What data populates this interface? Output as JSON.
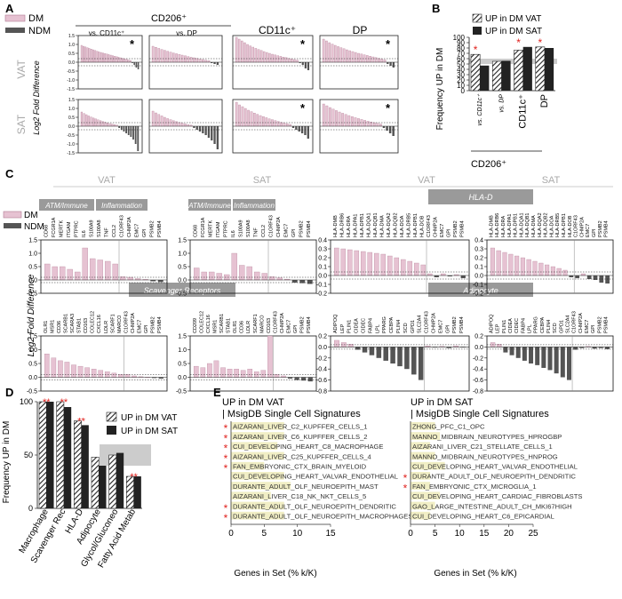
{
  "panel_labels": [
    "A",
    "B",
    "C",
    "D",
    "E"
  ],
  "colors": {
    "dm": "#e6c2d2",
    "dm_stroke": "#b07a92",
    "ndm": "#555555",
    "hatch": "#222222",
    "gray_band": "#cccccc",
    "header_box": "#9a9a9a",
    "star": "#e0201c",
    "highlight": "#f1eec5"
  },
  "legend": {
    "dm": "DM",
    "ndm": "NDM"
  },
  "panel_a": {
    "group_header": "CD206⁺",
    "col_titles": [
      "vs. CD11c⁺",
      "vs. DP",
      "CD11c⁺",
      "DP"
    ],
    "row_labels": [
      "VAT",
      "SAT"
    ],
    "ylabel": "Log2 Fold Difference",
    "star": "*"
  },
  "panel_c": {
    "ylabel": "Log2 Fold Difference",
    "col_titles": [
      "VAT",
      "SAT",
      "VAT",
      "SAT"
    ],
    "boxes": {
      "atm": "ATM/Immune",
      "inflammation": "Inflammation",
      "hlad": "HLA-D",
      "scavenger": "Scavenger Receptors",
      "adipocyte": "Adipocyte"
    }
  },
  "panel_e": {
    "left_title": "UP in DM VAT",
    "left_subtitle": "| MsigDB Single Cell Signatures",
    "right_title": "UP in DM SAT",
    "right_subtitle": "| MsigDB Single Cell Signatures",
    "left_items": [
      {
        "label": "AIZARANI_LIVER_C2_KUPFFER_CELLS_1",
        "star": true
      },
      {
        "label": "AIZARANI_LIVER_C6_KUPFFER_CELLS_2",
        "star": true
      },
      {
        "label": "CUI_DEVELOPING_HEART_C8_MACROPHAGE",
        "star": true
      },
      {
        "label": "AIZARANI_LIVER_C25_KUPFFER_CELLS_4",
        "star": true
      },
      {
        "label": "FAN_EMBRYONIC_CTX_BRAIN_MYELOID",
        "star": true
      },
      {
        "label": "CUI_DEVELOPING_HEART_VALVAR_ENDOTHELIAL",
        "star": false
      },
      {
        "label": "DURANTE_ADULT_OLF_NEUROEPITH_MAST",
        "star": false
      },
      {
        "label": "AIZARANI_LIVER_C18_NK_NKT_CELLS_5",
        "star": false
      },
      {
        "label": "DURANTE_ADULT_OLF_NEUROEPITH_DENDRITIC",
        "star": true
      },
      {
        "label": "DURANTE_ADULT_OLF_NEUROEPITH_MACROPHAGES",
        "star": true
      }
    ],
    "right_items": [
      {
        "label": "ZHONG_PFC_C1_OPC",
        "star": false
      },
      {
        "label": "MANNO_MIDBRAIN_NEUROTYPES_HPROGBP",
        "star": false
      },
      {
        "label": "AIZARANI_LIVER_C21_STELLATE_CELLS_1",
        "star": false
      },
      {
        "label": "MANNO_MIDBRAIN_NEUROTYPES_HNPROG",
        "star": false
      },
      {
        "label": "CUI_DEVELOPING_HEART_VALVAR_ENDOTHELIAL",
        "star": false
      },
      {
        "label": "DURANTE_ADULT_OLF_NEUROEPITH_DENDRITIC",
        "star": true
      },
      {
        "label": "FAN_EMBRYONIC_CTX_MICROGLIA_1",
        "star": true
      },
      {
        "label": "CUI_DEVELOPING_HEART_CARDIAC_FIBROBLASTS",
        "star": false
      },
      {
        "label": "GAO_LARGE_INTESTINE_ADULT_CH_MKI67HIGH",
        "star": false
      },
      {
        "label": "CUI_DEVELOPING_HEART_C6_EPICARDIAL",
        "star": false
      }
    ]
  },
  "chart_data": [
    {
      "type": "bar",
      "id": "B",
      "ylabel": "Frequency UP in DM",
      "ylim": [
        0,
        100
      ],
      "yticks": [
        0,
        10,
        20,
        30,
        40,
        50,
        60,
        70,
        80,
        90,
        100
      ],
      "categories": [
        "vs. CD11c⁺",
        "vs. DP",
        "CD11c⁺",
        "DP"
      ],
      "group_label": "CD206⁺",
      "series": [
        {
          "name": "UP in DM VAT",
          "values": [
            68,
            55,
            76,
            82
          ]
        },
        {
          "name": "UP in DM SAT",
          "values": [
            47,
            56,
            82,
            80
          ]
        }
      ],
      "band": [
        50,
        60
      ],
      "stars": [
        true,
        false,
        true,
        true
      ]
    },
    {
      "type": "bar",
      "id": "D",
      "ylabel": "Frequency UP in DM",
      "ylim": [
        0,
        100
      ],
      "yticks": [
        0,
        50,
        100
      ],
      "categories": [
        "Macrophage",
        "Scavenger Rec",
        "HLA-D",
        "Adipocyte",
        "Glycol/Gluconeo",
        "Fatty Acid Metab"
      ],
      "series": [
        {
          "name": "UP in DM VAT",
          "values": [
            100,
            100,
            82,
            48,
            50,
            30
          ]
        },
        {
          "name": "UP in DM SAT",
          "values": [
            100,
            95,
            78,
            40,
            52,
            30
          ]
        }
      ],
      "band": [
        40,
        60
      ],
      "stars": [
        2,
        2,
        2,
        0,
        0,
        2
      ]
    },
    {
      "type": "bar",
      "id": "E-left",
      "xlabel": "Genes in Set (% k/K)",
      "xlim": [
        0,
        15
      ],
      "xticks": [
        0,
        5,
        10,
        15
      ],
      "categories": [
        "AIZARANI_LIVER_C2_KUPFFER_CELLS_1",
        "AIZARANI_LIVER_C6_KUPFFER_CELLS_2",
        "CUI_DEVELOPING_HEART_C8_MACROPHAGE",
        "AIZARANI_LIVER_C25_KUPFFER_CELLS_4",
        "FAN_EMBRYONIC_CTX_BRAIN_MYELOID",
        "CUI_DEVELOPING_HEART_VALVAR_ENDOTHELIAL",
        "DURANTE_ADULT_OLF_NEUROEPITH_MAST",
        "AIZARANI_LIVER_C18_NK_NKT_CELLS_5",
        "DURANTE_ADULT_OLF_NEUROEPITH_DENDRITIC",
        "DURANTE_ADULT_OLF_NEUROEPITH_MACROPHAGES"
      ],
      "values": [
        8,
        8,
        7,
        8,
        5,
        8,
        9,
        6,
        8,
        8
      ]
    },
    {
      "type": "bar",
      "id": "E-right",
      "xlabel": "Genes in Set (% k/K)",
      "xlim": [
        0,
        25
      ],
      "xticks": [
        0,
        5,
        10,
        15,
        20,
        25
      ],
      "categories": [
        "ZHONG_PFC_C1_OPC",
        "MANNO_MIDBRAIN_NEUROTYPES_HPROGBP",
        "AIZARANI_LIVER_C21_STELLATE_CELLS_1",
        "MANNO_MIDBRAIN_NEUROTYPES_HNPROG",
        "CUI_DEVELOPING_HEART_VALVAR_ENDOTHELIAL",
        "DURANTE_ADULT_OLF_NEUROEPITH_DENDRITIC",
        "FAN_EMBRYONIC_CTX_MICROGLIA_1",
        "CUI_DEVELOPING_HEART_CARDIAC_FIBROBLASTS",
        "GAO_LARGE_INTESTINE_ADULT_CH_MKI67HIGH",
        "CUI_DEVELOPING_HEART_C6_EPICARDIAL"
      ],
      "values": [
        5,
        6,
        4,
        5,
        7,
        4,
        4,
        6,
        5,
        4
      ]
    },
    {
      "type": "bar",
      "id": "A-VAT-vsCD11c",
      "ylim": [
        -1.5,
        1.5
      ],
      "yticks": [
        -1.5,
        -1.0,
        -0.5,
        0,
        0.5,
        1.0,
        1.5
      ],
      "values": [
        0.95,
        0.9,
        0.86,
        0.82,
        0.78,
        0.74,
        0.7,
        0.66,
        0.62,
        0.58,
        0.55,
        0.52,
        0.49,
        0.46,
        0.43,
        0.4,
        0.37,
        0.34,
        0.31,
        0.28,
        0.25,
        0.22,
        0.19,
        0.16,
        0.13,
        0.1,
        -0.05,
        -0.15,
        -0.3,
        -0.4
      ]
    },
    {
      "type": "bar",
      "id": "A-VAT-vsDP",
      "ylim": [
        -1.5,
        1.5
      ],
      "values": [
        0.9,
        0.84,
        0.78,
        0.72,
        0.67,
        0.62,
        0.57,
        0.52,
        0.48,
        0.44,
        0.4,
        0.36,
        0.32,
        0.28,
        0.25,
        0.22,
        0.18,
        0.15,
        0.12,
        0.09,
        -0.05,
        -0.1,
        -0.15
      ]
    },
    {
      "type": "bar",
      "id": "A-VAT-CD11c",
      "ylim": [
        -1.5,
        1.5
      ],
      "values": [
        1.4,
        1.3,
        1.2,
        1.1,
        1.0,
        0.92,
        0.85,
        0.78,
        0.72,
        0.66,
        0.6,
        0.55,
        0.5,
        0.45,
        0.41,
        0.37,
        0.33,
        0.29,
        0.26,
        0.22,
        0.19,
        0.15,
        0.12,
        -0.05,
        -0.15,
        -0.35,
        -0.45
      ]
    },
    {
      "type": "bar",
      "id": "A-VAT-DP",
      "ylim": [
        -1.5,
        1.5
      ],
      "values": [
        1.3,
        1.2,
        1.1,
        1.02,
        0.95,
        0.88,
        0.82,
        0.76,
        0.7,
        0.65,
        0.6,
        0.55,
        0.5,
        0.46,
        0.42,
        0.38,
        0.34,
        0.3,
        0.26,
        0.22,
        0.18,
        0.14,
        -0.1,
        -0.2,
        -0.3
      ]
    },
    {
      "type": "bar",
      "id": "A-SAT-vsCD11c",
      "ylim": [
        -1.5,
        1.5
      ],
      "values": [
        0.8,
        0.72,
        0.65,
        0.58,
        0.52,
        0.46,
        0.41,
        0.36,
        0.31,
        0.27,
        0.23,
        0.19,
        0.15,
        0.12,
        0.09,
        0.06,
        -0.1,
        -0.2,
        -0.3,
        -0.4,
        -0.5,
        -0.6,
        -0.75,
        -1.0,
        -1.4
      ]
    },
    {
      "type": "bar",
      "id": "A-SAT-vsDP",
      "ylim": [
        -1.5,
        1.5
      ],
      "values": [
        0.85,
        0.75,
        0.66,
        0.58,
        0.5,
        0.43,
        0.37,
        0.31,
        0.26,
        0.21,
        0.17,
        0.13,
        0.09,
        0.06,
        -0.1,
        -0.2,
        -0.3,
        -0.4,
        -0.5,
        -0.65,
        -0.8,
        -1.0,
        -1.3
      ]
    },
    {
      "type": "bar",
      "id": "A-SAT-CD11c",
      "ylim": [
        -1.5,
        1.5
      ],
      "values": [
        1.35,
        1.2,
        1.1,
        1.0,
        0.9,
        0.82,
        0.74,
        0.67,
        0.6,
        0.54,
        0.48,
        0.42,
        0.37,
        0.32,
        0.27,
        0.22,
        0.18,
        0.14,
        0.1,
        -0.1,
        -0.2,
        -0.3,
        -0.4,
        -0.5,
        -0.7
      ]
    },
    {
      "type": "bar",
      "id": "A-SAT-DP",
      "ylim": [
        -1.5,
        1.5
      ],
      "values": [
        1.25,
        1.15,
        1.05,
        0.96,
        0.88,
        0.8,
        0.73,
        0.66,
        0.6,
        0.54,
        0.48,
        0.43,
        0.38,
        0.33,
        0.28,
        0.24,
        0.2,
        0.16,
        0.12,
        -0.1,
        -0.25,
        -0.4,
        -0.55
      ]
    },
    {
      "type": "bar",
      "id": "C-VAT-1",
      "ylim": [
        -0.5,
        1.5
      ],
      "yticks": [
        -0.5,
        0.0,
        0.5,
        1.0,
        1.5
      ],
      "categories": [
        "CD68",
        "FCGR1A",
        "MERTK",
        "ITGAM",
        "PTPRC",
        "IL6",
        "S100A9",
        "S100A8",
        "TNF",
        "CCL2",
        "C1ORF43",
        "CHMP2A",
        "EMC7",
        "GPI",
        "PSMB2",
        "PSMB4"
      ],
      "values": [
        0.6,
        0.5,
        0.5,
        0.4,
        0.3,
        1.2,
        0.8,
        0.75,
        0.7,
        0.6,
        0.12,
        0.1,
        0.05,
        0.02,
        -0.05,
        -0.08
      ]
    },
    {
      "type": "bar",
      "id": "C-SAT-1",
      "ylim": [
        -0.5,
        1.5
      ],
      "categories": [
        "CD68",
        "FCGR1A",
        "MERTK",
        "ITGAM",
        "PTPRC",
        "IL6",
        "S100A9",
        "S100A8",
        "TNF",
        "CCL2",
        "C1ORF43",
        "CHMP2A",
        "EMC7",
        "GPI",
        "PSMB2",
        "PSMB4"
      ],
      "values": [
        0.45,
        0.3,
        0.3,
        0.25,
        0.2,
        1.0,
        0.55,
        0.5,
        0.3,
        0.25,
        0.12,
        0.08,
        0.03,
        -0.1,
        -0.12,
        -0.15
      ]
    },
    {
      "type": "bar",
      "id": "C-VAT-2",
      "ylim": [
        -0.2,
        0.4
      ],
      "yticks": [
        -0.2,
        -0.1,
        0.0,
        0.1,
        0.2,
        0.3,
        0.4
      ],
      "categories": [
        "HLA-DMB",
        "HLA-DRB6",
        "HLA-DRA",
        "HLA-DPA1",
        "HLA-DPB1",
        "HLA-DQA1",
        "HLA-DQB1",
        "HLA-DMA",
        "HLA-DQA2",
        "HLA-DQB2",
        "HLA-DOA",
        "HLA-DRB5",
        "HLA-DPB1",
        "HLA-DOB",
        "C1ORF43",
        "CHMP2A",
        "EMC7",
        "GPI",
        "PSMB2",
        "PSMB4"
      ],
      "values": [
        0.31,
        0.3,
        0.29,
        0.28,
        0.27,
        0.26,
        0.25,
        0.24,
        0.22,
        0.2,
        0.18,
        0.16,
        0.14,
        0.12,
        0.02,
        -0.02,
        0.02,
        -0.01,
        0.01,
        -0.03
      ]
    },
    {
      "type": "bar",
      "id": "C-SAT-2",
      "ylim": [
        -0.2,
        0.4
      ],
      "categories": [
        "HLA-DMB",
        "HLA-DRB6",
        "HLA-DRA",
        "HLA-DPA1",
        "HLA-DPB1",
        "HLA-DQA1",
        "HLA-DQB1",
        "HLA-DMA",
        "HLA-DQA2",
        "HLA-DQB2",
        "HLA-DOA",
        "HLA-DRB5",
        "HLA-DPB1",
        "HLA-DOB",
        "C1ORF43",
        "CHMP2A",
        "EMC7",
        "GPI",
        "PSMB2",
        "PSMB4"
      ],
      "values": [
        0.31,
        0.28,
        0.26,
        0.24,
        0.22,
        0.2,
        0.18,
        0.16,
        0.14,
        0.12,
        0.1,
        0.08,
        0.06,
        -0.02,
        -0.03,
        0.02,
        -0.04,
        -0.05,
        -0.08,
        -0.09
      ]
    },
    {
      "type": "bar",
      "id": "C-VAT-3",
      "ylim": [
        -0.5,
        1.5
      ],
      "yticks": [
        -0.5,
        0.0,
        0.5,
        1.0,
        1.5
      ],
      "categories": [
        "OLR1",
        "MSR1",
        "CD36",
        "SCARB1",
        "SCARA3",
        "STAB1",
        "CD163",
        "COLEC12",
        "CXCL16",
        "LDLR",
        "SCARF1",
        "MARCO",
        "C1ORF43",
        "CHMP2A",
        "EMC7",
        "GPI",
        "PSMB2",
        "PSMB4"
      ],
      "values": [
        0.85,
        0.7,
        0.6,
        0.55,
        0.45,
        0.4,
        0.35,
        0.3,
        0.25,
        0.2,
        0.15,
        0.1,
        0.1,
        0.05,
        0.02,
        0.0,
        -0.03,
        -0.05
      ]
    },
    {
      "type": "bar",
      "id": "C-SAT-3",
      "ylim": [
        -0.5,
        1.5
      ],
      "categories": [
        "CD209",
        "COLEC12",
        "CXCL16",
        "MSR1",
        "SCARB1",
        "STAB1",
        "OLR1",
        "CD36",
        "LDLR",
        "SCARF1",
        "MARCO",
        "CD163",
        "C1ORF43",
        "CHMP2A",
        "EMC7",
        "GPI",
        "PSMB2",
        "PSMB4"
      ],
      "values": [
        0.4,
        0.35,
        0.5,
        0.6,
        0.35,
        0.3,
        0.3,
        0.25,
        0.3,
        0.2,
        0.25,
        1.5,
        0.1,
        0.05,
        -0.05,
        -0.1,
        -0.12,
        -0.15
      ]
    },
    {
      "type": "bar",
      "id": "C-VAT-4",
      "ylim": [
        -0.8,
        0.2
      ],
      "yticks": [
        -0.8,
        -0.6,
        -0.4,
        -0.2,
        0.0,
        0.2
      ],
      "categories": [
        "ADIPOQ",
        "LEP",
        "PLIN1",
        "CIDEA",
        "CIDEC",
        "FABP4",
        "LPL",
        "PPARG",
        "CEBPA",
        "PLIN4",
        "SCD",
        "GPD1",
        "SLC2A4",
        "C1ORF43",
        "CHMP2A",
        "EMC7",
        "GPI",
        "PSMB2",
        "PSMB4"
      ],
      "values": [
        0.12,
        0.08,
        0.05,
        -0.05,
        -0.1,
        -0.15,
        -0.2,
        -0.25,
        -0.3,
        -0.35,
        -0.4,
        -0.5,
        -0.6,
        0.02,
        -0.01,
        0.01,
        -0.02,
        0.02,
        -0.01
      ]
    },
    {
      "type": "bar",
      "id": "C-SAT-4",
      "ylim": [
        -0.8,
        0.2
      ],
      "categories": [
        "ADIPOQ",
        "LEP",
        "PLIN1",
        "CIDEA",
        "CIDEC",
        "FABP4",
        "LPL",
        "PPARG",
        "CEBPA",
        "PLIN4",
        "SCD",
        "GPD1",
        "SLC2A4",
        "C1ORF43",
        "CHMP2A",
        "EMC7",
        "GPI",
        "PSMB2",
        "PSMB4"
      ],
      "values": [
        0.08,
        0.05,
        -0.1,
        -0.15,
        -0.2,
        -0.25,
        -0.3,
        -0.33,
        -0.38,
        -0.42,
        -0.48,
        -0.55,
        -0.6,
        -0.05,
        -0.02,
        0.01,
        -0.03,
        -0.02,
        -0.04
      ]
    }
  ]
}
